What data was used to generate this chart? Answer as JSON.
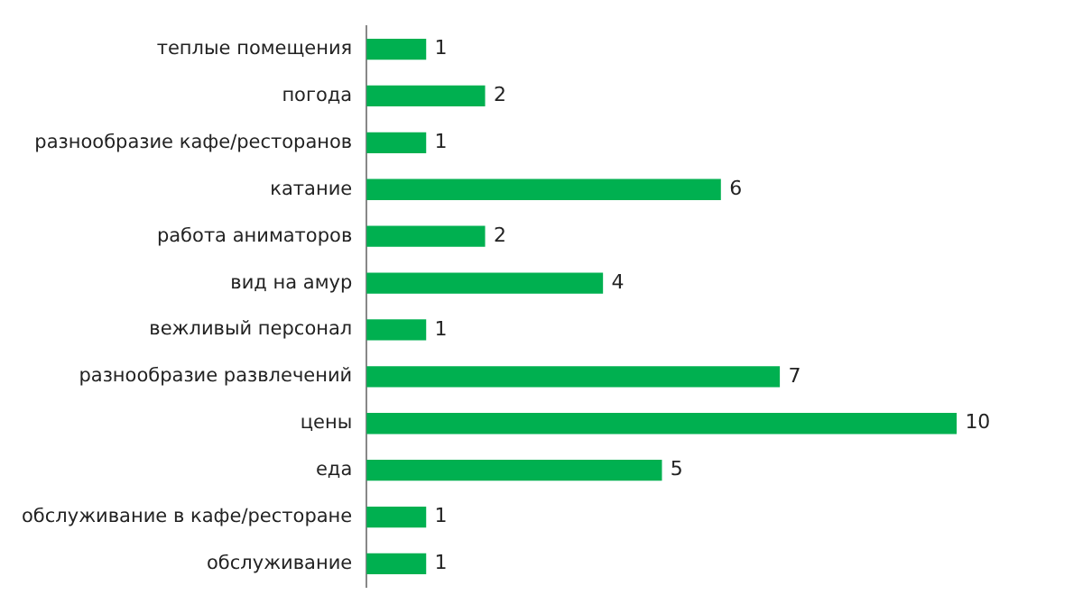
{
  "chart_data": {
    "type": "bar",
    "orientation": "horizontal",
    "categories": [
      "теплые помещения",
      "погода",
      "разнообразие кафе/ресторанов",
      "катание",
      "работа аниматоров",
      "вид на амур",
      "вежливый персонал",
      "разнообразие развлечений",
      "цены",
      "еда",
      "обслуживание в кафе/ресторане",
      "обслуживание"
    ],
    "values": [
      1,
      2,
      1,
      6,
      2,
      4,
      1,
      7,
      10,
      5,
      1,
      1
    ],
    "color": "#00b050",
    "data_labels": true,
    "grid": false,
    "legend": false
  }
}
